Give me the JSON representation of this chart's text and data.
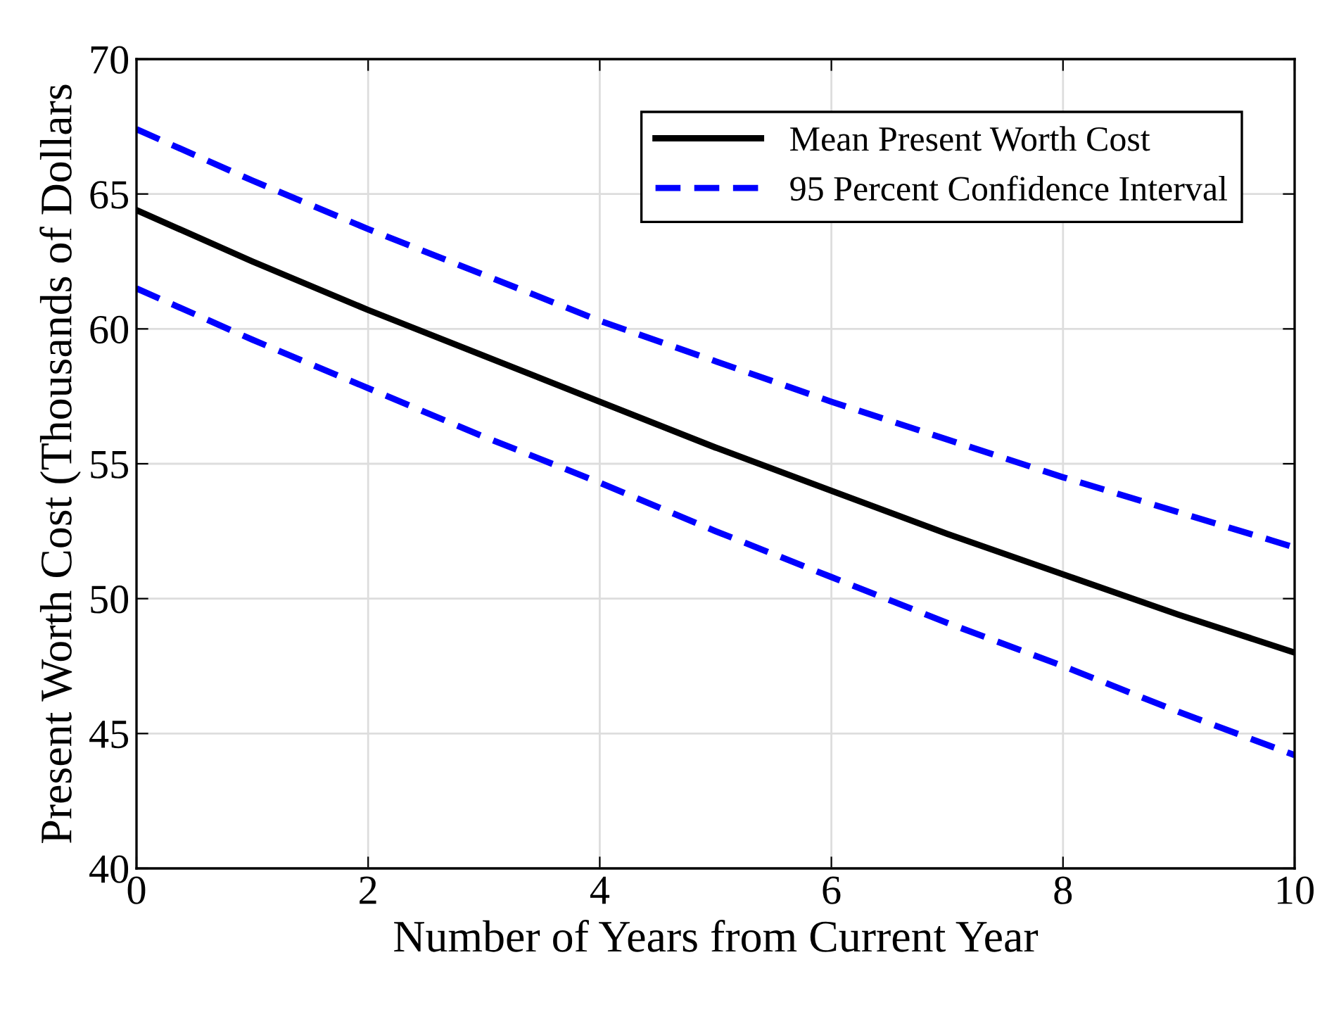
{
  "chart_data": {
    "type": "line",
    "xlabel": "Number of Years from Current Year",
    "ylabel": "Present Worth Cost (Thousands of Dollars",
    "x": [
      0,
      1,
      2,
      3,
      4,
      5,
      6,
      7,
      8,
      9,
      10
    ],
    "series": [
      {
        "name": "Mean Present Worth Cost",
        "color": "#000000",
        "line_style": "solid",
        "values": [
          64.4,
          62.5,
          60.7,
          59.0,
          57.3,
          55.6,
          54.0,
          52.4,
          50.9,
          49.4,
          48.0
        ]
      },
      {
        "name": "95 Percent Confidence Interval",
        "color": "#0000ff",
        "line_style": "dashed",
        "values": [
          67.4,
          65.5,
          63.7,
          62.0,
          60.3,
          58.8,
          57.3,
          55.9,
          54.5,
          53.2,
          51.9
        ]
      },
      {
        "color": "#0000ff",
        "line_style": "dashed",
        "values": [
          61.5,
          59.6,
          57.8,
          56.0,
          54.3,
          52.5,
          50.8,
          49.1,
          47.5,
          45.8,
          44.2
        ]
      }
    ],
    "xlim": [
      0,
      10
    ],
    "xticks": [
      0,
      2,
      4,
      6,
      8,
      10
    ],
    "ylim": [
      40,
      70
    ],
    "yticks": [
      40,
      45,
      50,
      55,
      60,
      65,
      70
    ],
    "grid": true,
    "legend": "top right",
    "marker": "none"
  }
}
